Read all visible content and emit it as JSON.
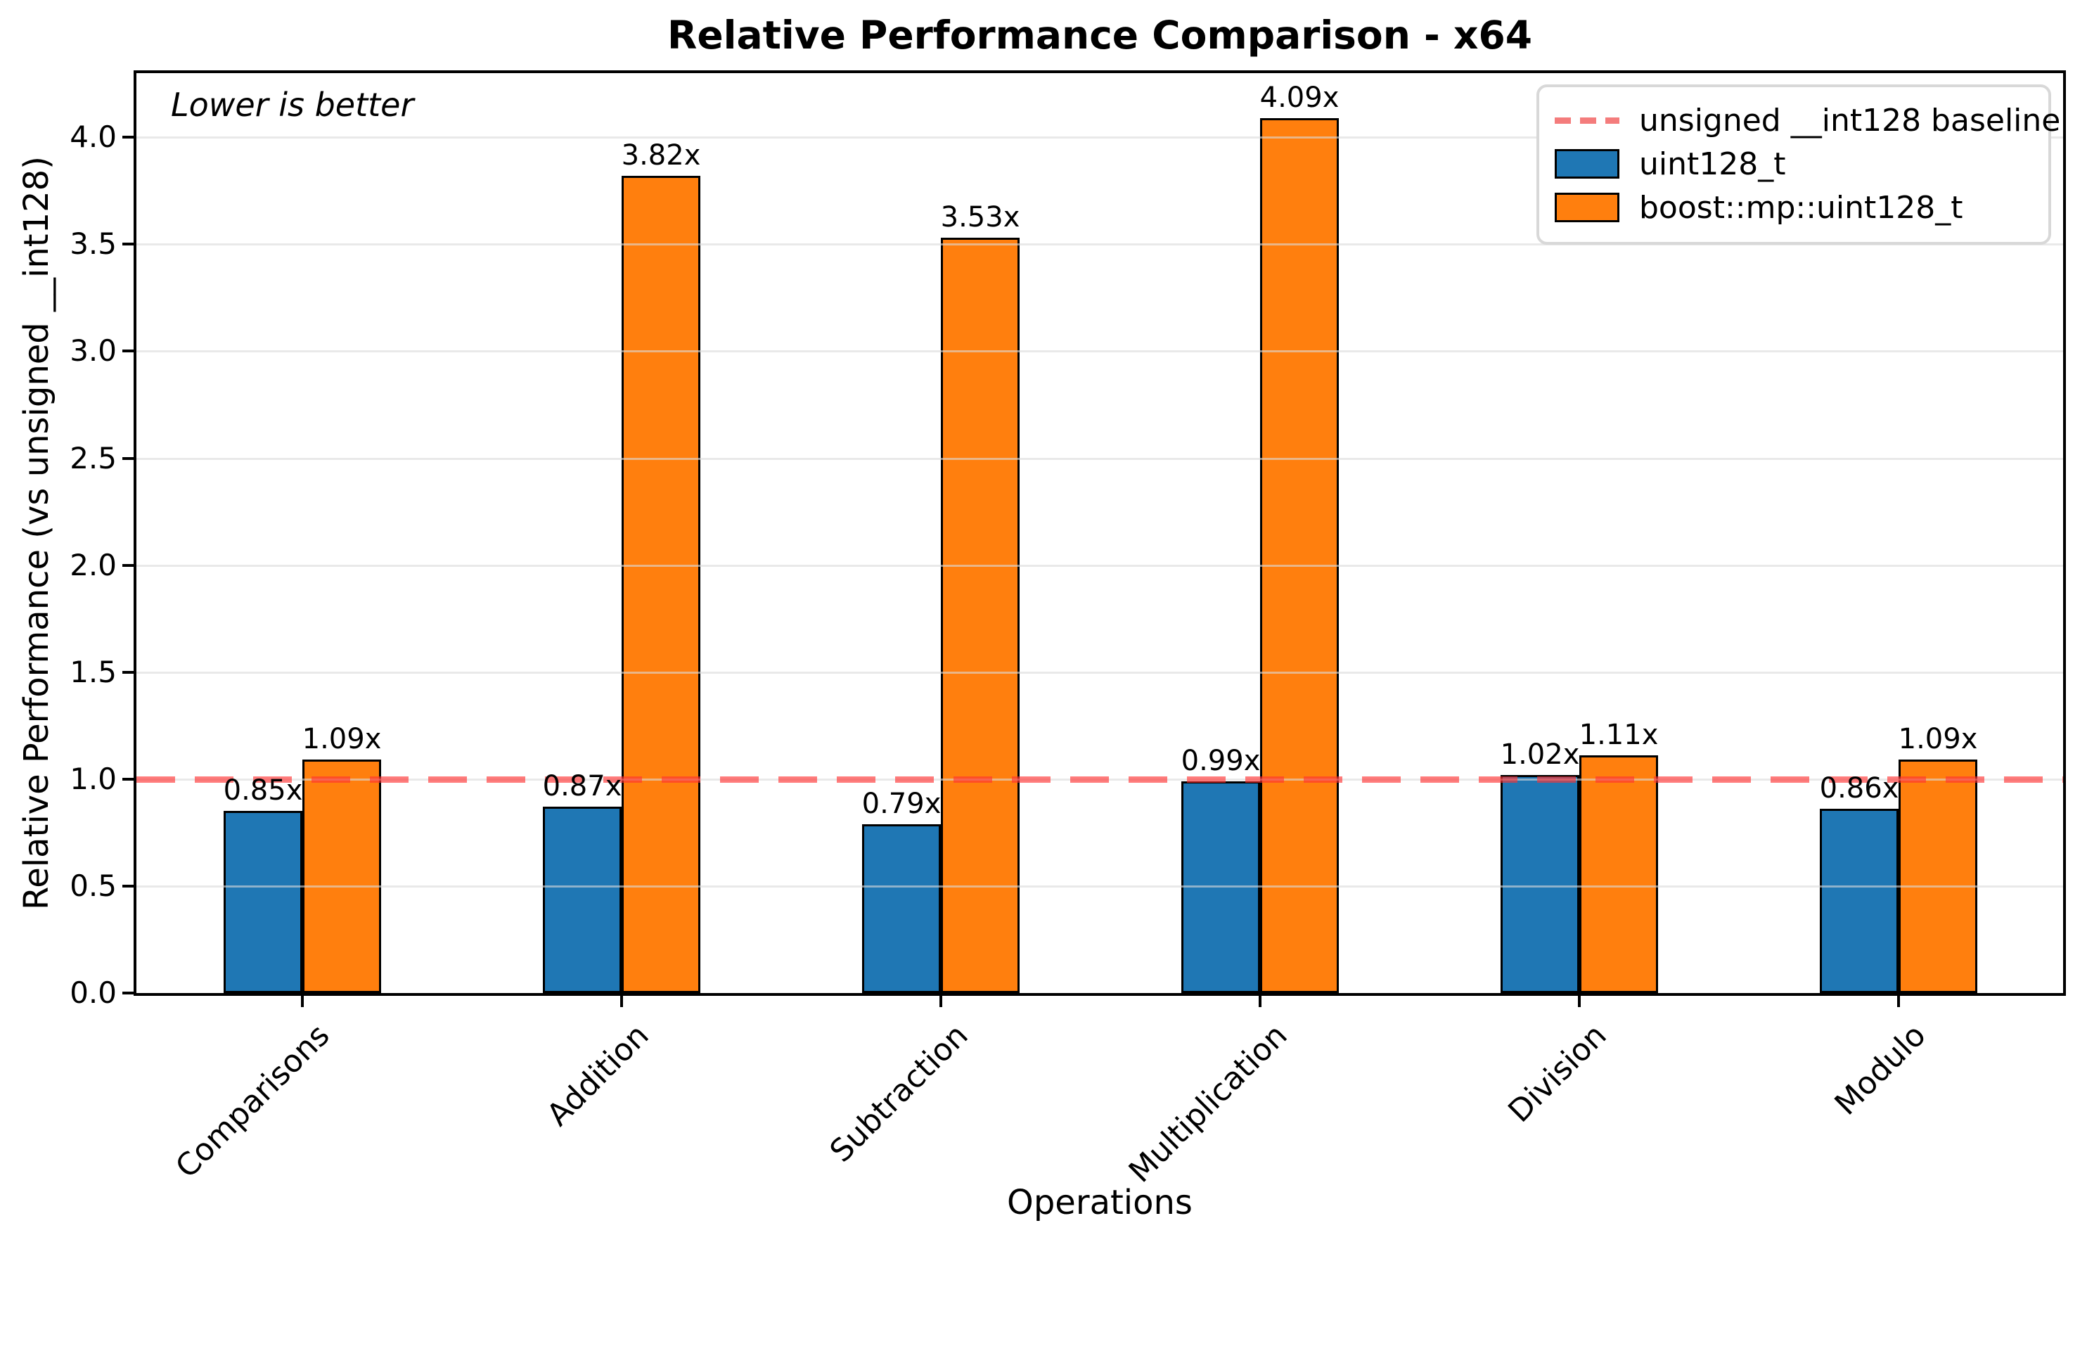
{
  "chart_data": {
    "type": "bar",
    "title": "Relative Performance Comparison - x64",
    "xlabel": "Operations",
    "ylabel": "Relative Performance (vs unsigned __int128)",
    "annotation": "Lower is better",
    "categories": [
      "Comparisons",
      "Addition",
      "Subtraction",
      "Multiplication",
      "Division",
      "Modulo"
    ],
    "series": [
      {
        "name": "uint128_t",
        "color": "#1f77b4",
        "values": [
          0.85,
          0.87,
          0.79,
          0.99,
          1.02,
          0.86
        ],
        "labels": [
          "0.85x",
          "0.87x",
          "0.79x",
          "0.99x",
          "1.02x",
          "0.86x"
        ]
      },
      {
        "name": "boost::mp::uint128_t",
        "color": "#ff7f0e",
        "values": [
          1.09,
          3.82,
          3.53,
          4.09,
          1.11,
          1.09
        ],
        "labels": [
          "1.09x",
          "3.82x",
          "3.53x",
          "4.09x",
          "1.11x",
          "1.09x"
        ]
      }
    ],
    "baseline": {
      "value": 1.0,
      "label": "unsigned __int128 baseline",
      "color": "#f47c7c"
    },
    "ylim": [
      0,
      4.3
    ],
    "yticks": [
      0.0,
      0.5,
      1.0,
      1.5,
      2.0,
      2.5,
      3.0,
      3.5,
      4.0
    ],
    "grid": true,
    "legend_position": "top-right",
    "bar_edge_color": "#000000"
  }
}
